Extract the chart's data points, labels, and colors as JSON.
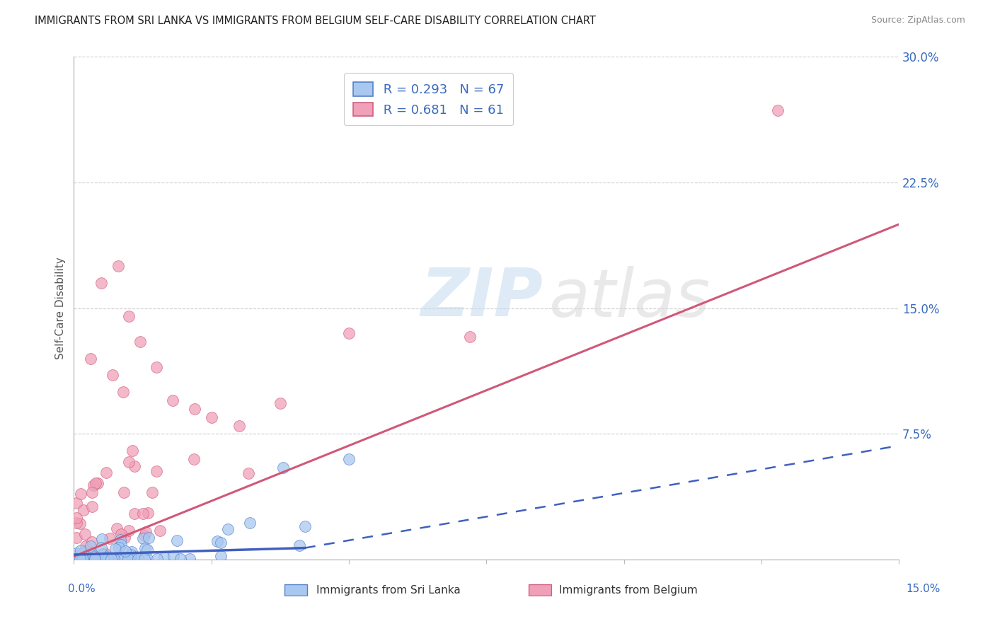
{
  "title": "IMMIGRANTS FROM SRI LANKA VS IMMIGRANTS FROM BELGIUM SELF-CARE DISABILITY CORRELATION CHART",
  "source": "Source: ZipAtlas.com",
  "ylabel": "Self-Care Disability",
  "xlim": [
    0.0,
    0.15
  ],
  "ylim": [
    0.0,
    0.3
  ],
  "legend_r1": "R = 0.293",
  "legend_n1": "N = 67",
  "legend_r2": "R = 0.681",
  "legend_n2": "N = 61",
  "color_sri_lanka_fill": "#a8c8f0",
  "color_sri_lanka_edge": "#5580c8",
  "color_belgium_fill": "#f0a0b8",
  "color_belgium_edge": "#d06080",
  "color_sri_lanka_line": "#4060c0",
  "color_belgium_line": "#d05878",
  "color_text_blue": "#3a6bbf",
  "color_grid": "#c8c8cc",
  "background_color": "#ffffff",
  "sl_line_x0": 0.0,
  "sl_line_x_solid_end": 0.042,
  "sl_line_x1": 0.15,
  "sl_line_y0": 0.003,
  "sl_line_y_solid_end": 0.007,
  "sl_line_y1": 0.068,
  "be_line_x0": 0.0,
  "be_line_x1": 0.15,
  "be_line_y0": 0.002,
  "be_line_y1": 0.2
}
